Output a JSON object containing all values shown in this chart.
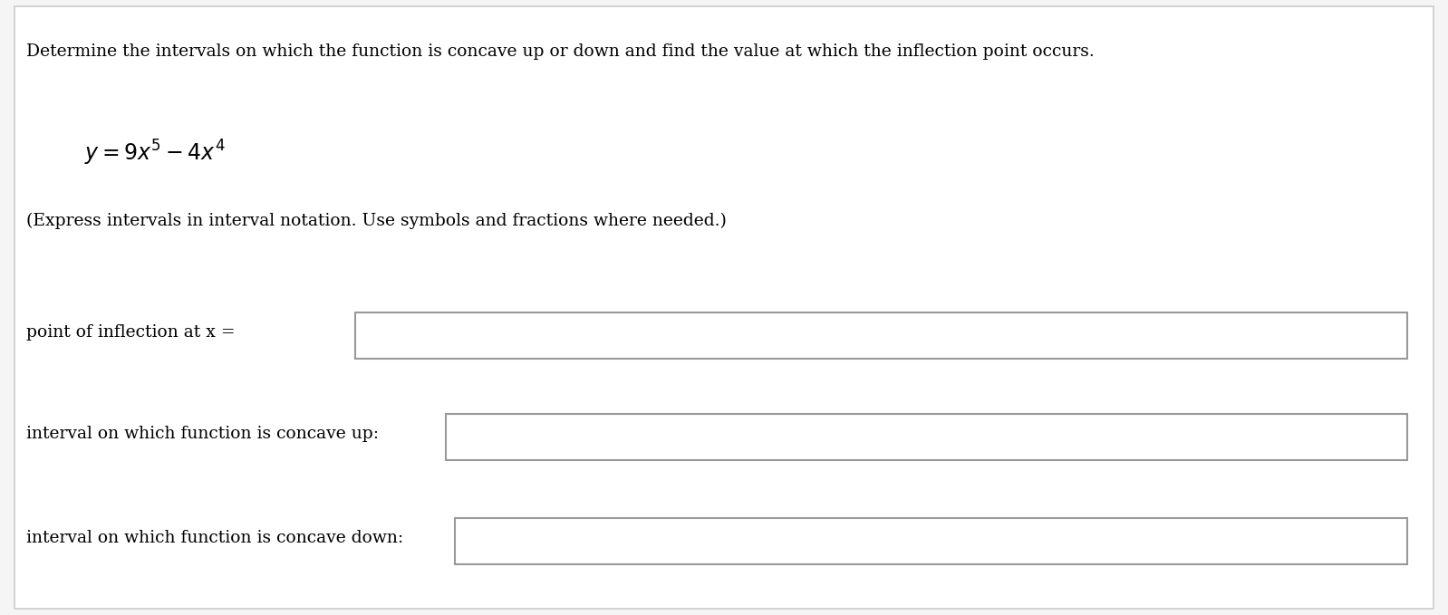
{
  "background_color": "#f5f5f5",
  "inner_background": "#ffffff",
  "border_color": "#cccccc",
  "title_text": "Determine the intervals on which the function is concave up or down and find the value at which the inflection point occurs.",
  "equation": "y = 9x⁵ – 4x⁴",
  "note_text": "(Express intervals in interval notation. Use symbols and fractions where needed.)",
  "label1": "point of inflection at x =",
  "label2": "interval on which function is concave up:",
  "label3": "interval on which function is concave down:",
  "title_fontsize": 13.5,
  "equation_fontsize": 16,
  "note_fontsize": 13.5,
  "label_fontsize": 13.5,
  "font_family": "serif",
  "box_border_color": "#999999",
  "box_fill_color": "#ffffff",
  "text_color": "#000000"
}
